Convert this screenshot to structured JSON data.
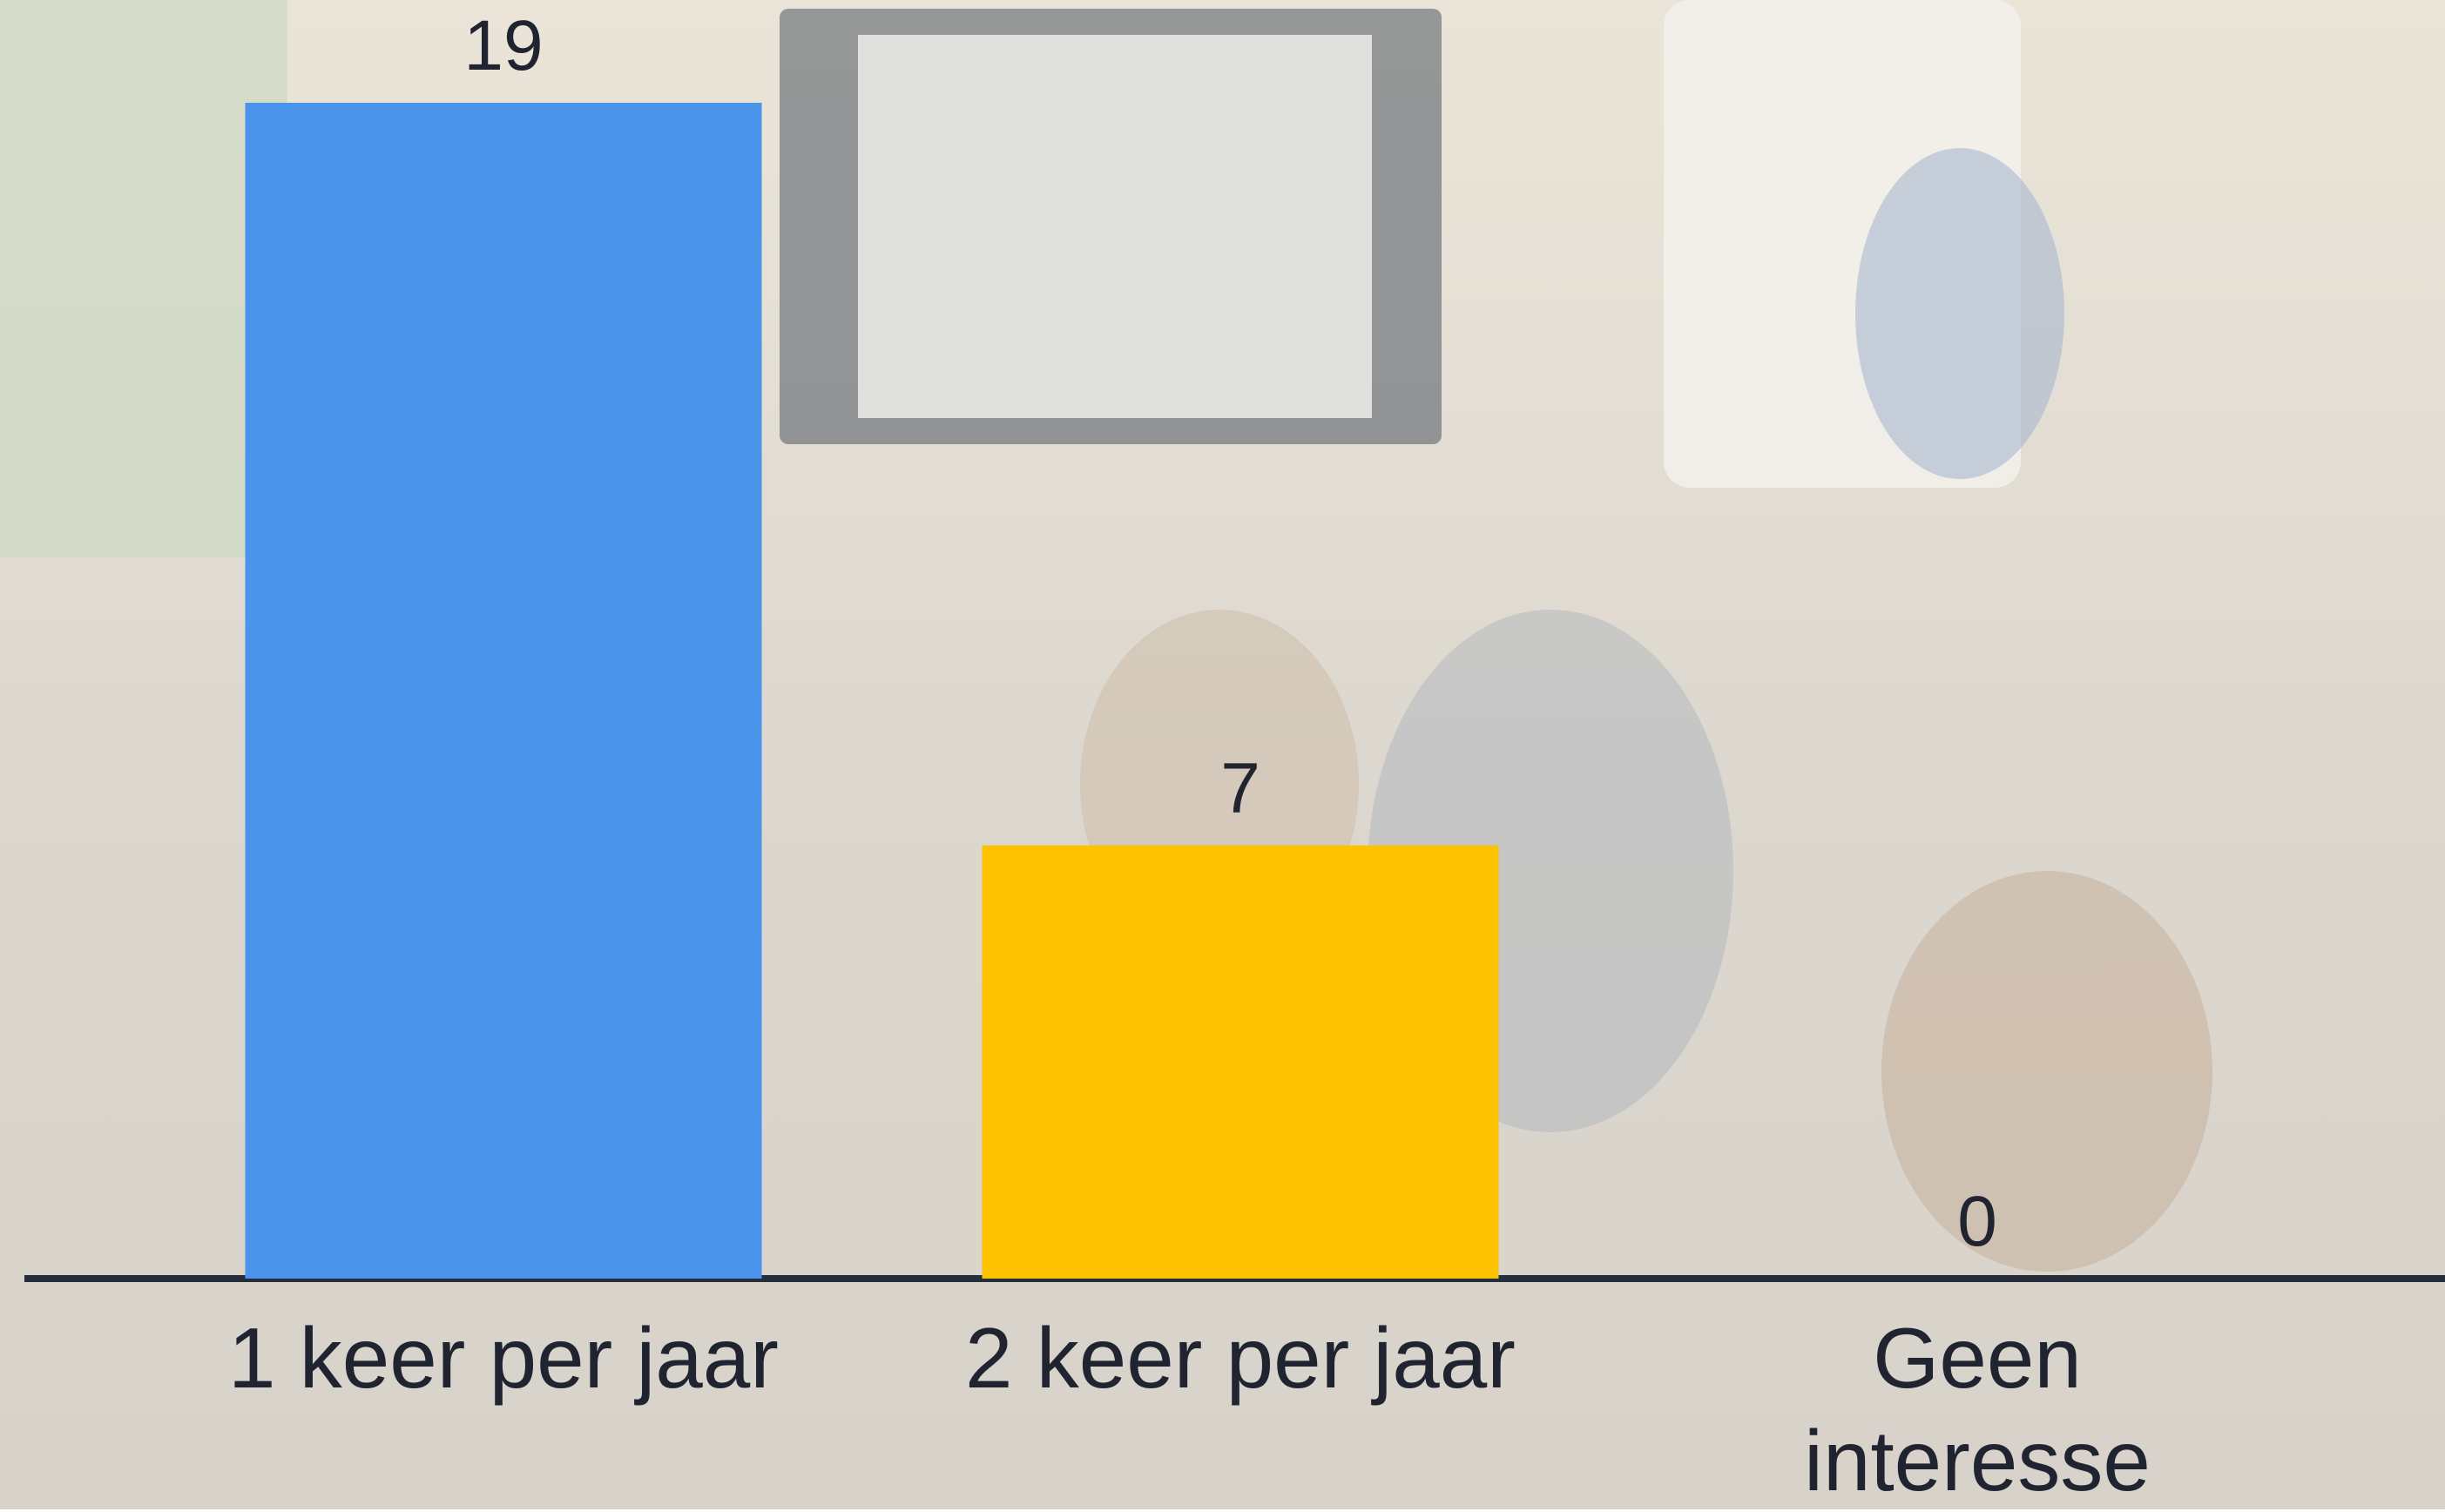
{
  "chart_data": {
    "type": "bar",
    "categories": [
      "1 keer per jaar",
      "2 keer per jaar",
      "Geen interesse"
    ],
    "values": [
      19,
      7,
      0
    ],
    "colors": [
      "#4a94ec",
      "#fdc300",
      "#e8453c"
    ]
  }
}
